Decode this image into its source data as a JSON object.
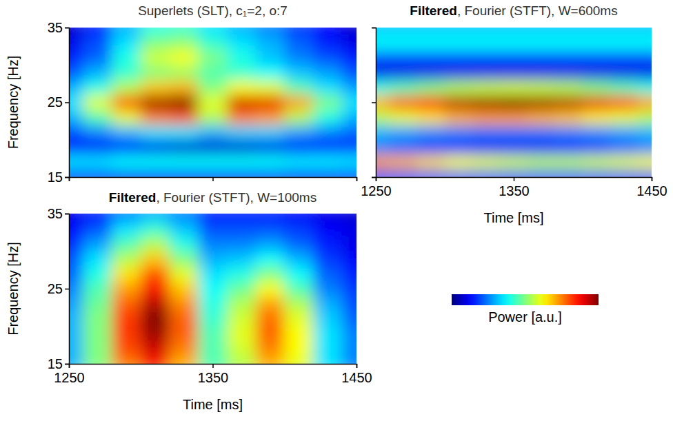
{
  "chart_data": [
    {
      "type": "heatmap",
      "title": "Superlets (SLT), c₁=2, o:7",
      "ylabel": "Frequency [Hz]",
      "x": [
        1250,
        1270,
        1290,
        1310,
        1330,
        1350,
        1370,
        1390,
        1410,
        1430,
        1450
      ],
      "y": [
        15,
        17,
        19,
        21,
        23,
        25,
        27,
        29,
        31,
        33,
        35
      ],
      "cells": [
        [
          0.15,
          0.15,
          0.12,
          0.12,
          0.12,
          0.12,
          0.12,
          0.12,
          0.12,
          0.12,
          0.15
        ],
        [
          0.35,
          0.35,
          0.38,
          0.38,
          0.38,
          0.38,
          0.38,
          0.38,
          0.36,
          0.36,
          0.35
        ],
        [
          0.15,
          0.12,
          0.12,
          0.1,
          0.08,
          0.08,
          0.08,
          0.1,
          0.12,
          0.15,
          0.18
        ],
        [
          0.2,
          0.25,
          0.3,
          0.35,
          0.35,
          0.3,
          0.33,
          0.33,
          0.28,
          0.25,
          0.22
        ],
        [
          0.3,
          0.45,
          0.6,
          0.75,
          0.78,
          0.55,
          0.75,
          0.72,
          0.55,
          0.4,
          0.3
        ],
        [
          0.35,
          0.6,
          0.8,
          0.97,
          1.0,
          0.6,
          0.92,
          0.9,
          0.72,
          0.5,
          0.35
        ],
        [
          0.3,
          0.4,
          0.55,
          0.68,
          0.7,
          0.5,
          0.62,
          0.6,
          0.45,
          0.35,
          0.28
        ],
        [
          0.2,
          0.3,
          0.42,
          0.5,
          0.52,
          0.45,
          0.42,
          0.38,
          0.32,
          0.28,
          0.2
        ],
        [
          0.15,
          0.22,
          0.4,
          0.58,
          0.62,
          0.5,
          0.4,
          0.32,
          0.25,
          0.2,
          0.15
        ],
        [
          0.1,
          0.2,
          0.35,
          0.5,
          0.52,
          0.42,
          0.35,
          0.3,
          0.22,
          0.15,
          0.1
        ],
        [
          0.08,
          0.15,
          0.3,
          0.4,
          0.42,
          0.35,
          0.3,
          0.25,
          0.18,
          0.12,
          0.08
        ]
      ],
      "xlim": [
        1250,
        1450
      ],
      "ylim": [
        15,
        35
      ],
      "xticks": [
        1250,
        1350,
        1450
      ],
      "yticks": [
        15,
        25,
        35
      ],
      "tick_labels": "y",
      "color_range": [
        0,
        1
      ]
    },
    {
      "type": "heatmap",
      "title": "Filtered, Fourier (STFT), W=600ms",
      "xlabel": "Time [ms]",
      "x": [
        1250,
        1270,
        1290,
        1310,
        1330,
        1350,
        1370,
        1390,
        1410,
        1430,
        1450
      ],
      "y": [
        15,
        17,
        19,
        21,
        23,
        25,
        27,
        29,
        31,
        33,
        35
      ],
      "cells": [
        [
          0.2,
          0.2,
          0.2,
          0.2,
          0.2,
          0.2,
          0.2,
          0.2,
          0.2,
          0.2,
          0.2
        ],
        [
          0.72,
          0.7,
          0.66,
          0.62,
          0.6,
          0.58,
          0.56,
          0.56,
          0.58,
          0.6,
          0.62
        ],
        [
          0.25,
          0.22,
          0.18,
          0.15,
          0.12,
          0.12,
          0.12,
          0.14,
          0.18,
          0.22,
          0.25
        ],
        [
          0.3,
          0.28,
          0.26,
          0.25,
          0.24,
          0.24,
          0.24,
          0.25,
          0.26,
          0.28,
          0.3
        ],
        [
          0.55,
          0.6,
          0.65,
          0.7,
          0.72,
          0.72,
          0.7,
          0.68,
          0.64,
          0.6,
          0.55
        ],
        [
          0.7,
          0.8,
          0.88,
          0.95,
          0.98,
          1.0,
          0.98,
          0.95,
          0.9,
          0.82,
          0.72
        ],
        [
          0.4,
          0.45,
          0.5,
          0.55,
          0.57,
          0.58,
          0.57,
          0.55,
          0.5,
          0.45,
          0.4
        ],
        [
          0.1,
          0.1,
          0.1,
          0.1,
          0.1,
          0.1,
          0.1,
          0.1,
          0.1,
          0.1,
          0.1
        ],
        [
          0.2,
          0.2,
          0.2,
          0.2,
          0.2,
          0.2,
          0.2,
          0.2,
          0.2,
          0.2,
          0.2
        ],
        [
          0.38,
          0.38,
          0.38,
          0.38,
          0.38,
          0.38,
          0.38,
          0.38,
          0.38,
          0.38,
          0.38
        ],
        [
          0.32,
          0.32,
          0.32,
          0.32,
          0.32,
          0.32,
          0.32,
          0.32,
          0.32,
          0.32,
          0.32
        ]
      ],
      "xlim": [
        1250,
        1450
      ],
      "ylim": [
        15,
        35
      ],
      "xticks": [
        1250,
        1350,
        1450
      ],
      "yticks": [
        15,
        25,
        35
      ],
      "tick_labels": "x",
      "color_range": [
        0,
        1
      ]
    },
    {
      "type": "heatmap",
      "title": "Filtered, Fourier (STFT), W=100ms",
      "xlabel": "Time [ms]",
      "ylabel": "Frequency [Hz]",
      "x": [
        1250,
        1270,
        1290,
        1310,
        1330,
        1350,
        1370,
        1390,
        1410,
        1430,
        1450
      ],
      "y": [
        15,
        17,
        19,
        21,
        23,
        25,
        27,
        29,
        31,
        33,
        35
      ],
      "cells": [
        [
          0.3,
          0.5,
          0.75,
          0.85,
          0.7,
          0.45,
          0.55,
          0.7,
          0.6,
          0.35,
          0.25
        ],
        [
          0.3,
          0.5,
          0.8,
          0.92,
          0.75,
          0.45,
          0.58,
          0.75,
          0.62,
          0.35,
          0.25
        ],
        [
          0.3,
          0.5,
          0.82,
          0.97,
          0.78,
          0.45,
          0.6,
          0.78,
          0.62,
          0.35,
          0.25
        ],
        [
          0.3,
          0.5,
          0.82,
          1.0,
          0.78,
          0.42,
          0.58,
          0.77,
          0.6,
          0.33,
          0.22
        ],
        [
          0.28,
          0.48,
          0.78,
          0.95,
          0.74,
          0.4,
          0.55,
          0.72,
          0.55,
          0.3,
          0.2
        ],
        [
          0.25,
          0.45,
          0.72,
          0.88,
          0.68,
          0.38,
          0.48,
          0.62,
          0.45,
          0.25,
          0.18
        ],
        [
          0.22,
          0.4,
          0.65,
          0.8,
          0.6,
          0.35,
          0.4,
          0.5,
          0.38,
          0.22,
          0.15
        ],
        [
          0.2,
          0.35,
          0.55,
          0.68,
          0.5,
          0.3,
          0.32,
          0.38,
          0.3,
          0.18,
          0.12
        ],
        [
          0.15,
          0.28,
          0.45,
          0.55,
          0.4,
          0.25,
          0.25,
          0.28,
          0.22,
          0.15,
          0.1
        ],
        [
          0.12,
          0.2,
          0.35,
          0.42,
          0.32,
          0.2,
          0.2,
          0.2,
          0.18,
          0.12,
          0.1
        ],
        [
          0.1,
          0.15,
          0.25,
          0.3,
          0.25,
          0.15,
          0.15,
          0.15,
          0.12,
          0.1,
          0.08
        ]
      ],
      "xlim": [
        1250,
        1450
      ],
      "ylim": [
        15,
        35
      ],
      "xticks": [
        1250,
        1350,
        1450
      ],
      "yticks": [
        15,
        25,
        35
      ],
      "tick_labels": true,
      "color_range": [
        0,
        1
      ],
      "colorbar_label": "Power [a.u.]"
    }
  ]
}
